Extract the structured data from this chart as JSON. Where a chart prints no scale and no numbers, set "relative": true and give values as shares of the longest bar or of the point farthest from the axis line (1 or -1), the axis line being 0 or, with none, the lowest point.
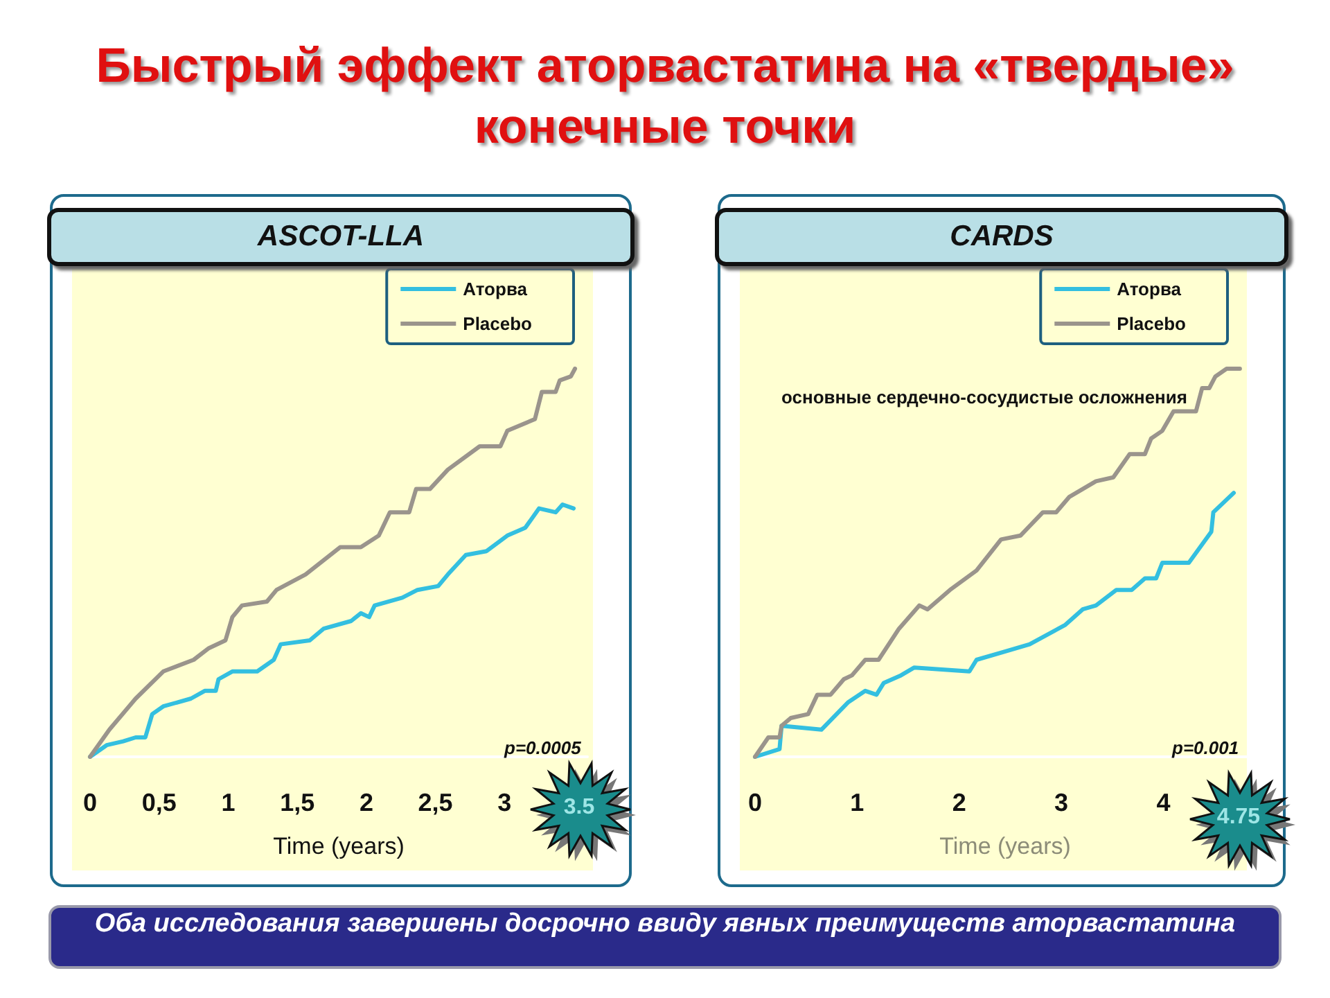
{
  "chart_data": [
    {
      "type": "line",
      "title": "ASCOT-LLA",
      "xlabel": "Time (years)",
      "relative": true,
      "xlim": [
        0,
        3.6
      ],
      "xticks": [
        0,
        {
          "value": 0.5,
          "label": "0,5"
        },
        1,
        {
          "value": 1.5,
          "label": "1,5"
        },
        2,
        {
          "value": 2.5,
          "label": "2,5"
        },
        3
      ],
      "tick_labels": "x",
      "grid": false,
      "legend": "top right",
      "marker": "none",
      "line_style": "solid",
      "annotations": [
        "Быстрый  эффект  аторвастатина на «твердые» конечные точки",
        "p=0.0005",
        "3.5",
        "Оба исследования завершены досрочно ввиду  явных преимуществ аторвастатина"
      ],
      "series": [
        {
          "name": "Аторва",
          "color": "#33bfe0",
          "x": [
            0,
            0.12,
            0.24,
            0.33,
            0.4,
            0.45,
            0.53,
            0.73,
            0.83,
            0.91,
            0.93,
            1.03,
            1.21,
            1.33,
            1.38,
            1.59,
            1.69,
            1.89,
            1.96,
            2.02,
            2.06,
            2.26,
            2.37,
            2.52,
            2.59,
            2.72,
            2.87,
            3.02,
            3.15,
            3.25,
            3.37,
            3.42,
            3.5
          ],
          "values": [
            0,
            0.03,
            0.04,
            0.05,
            0.05,
            0.11,
            0.13,
            0.15,
            0.17,
            0.17,
            0.2,
            0.22,
            0.22,
            0.25,
            0.29,
            0.3,
            0.33,
            0.35,
            0.37,
            0.36,
            0.39,
            0.41,
            0.43,
            0.44,
            0.47,
            0.52,
            0.53,
            0.57,
            0.59,
            0.64,
            0.63,
            0.65,
            0.64
          ]
        },
        {
          "name": "Placebo",
          "color": "#9a948c",
          "x": [
            0,
            0.14,
            0.33,
            0.53,
            0.75,
            0.86,
            0.98,
            1.03,
            1.1,
            1.28,
            1.35,
            1.56,
            1.81,
            1.96,
            2.09,
            2.17,
            2.31,
            2.36,
            2.46,
            2.59,
            2.82,
            2.97,
            3.02,
            3.22,
            3.27,
            3.37,
            3.4,
            3.48,
            3.51
          ],
          "values": [
            0,
            0.07,
            0.15,
            0.22,
            0.25,
            0.28,
            0.3,
            0.36,
            0.39,
            0.4,
            0.43,
            0.47,
            0.54,
            0.54,
            0.57,
            0.63,
            0.63,
            0.69,
            0.69,
            0.74,
            0.8,
            0.8,
            0.84,
            0.87,
            0.94,
            0.94,
            0.97,
            0.98,
            1
          ]
        }
      ]
    },
    {
      "type": "line",
      "title": "CARDS",
      "xlabel": "Time (years)",
      "relative": true,
      "xlim": [
        0,
        4.9
      ],
      "xticks": [
        0,
        1,
        2,
        3,
        4
      ],
      "tick_labels": "x",
      "grid": false,
      "legend": "top right",
      "marker": "none",
      "line_style": "solid",
      "annotations": [
        "основные сердечно-сосудистые осложнения",
        "p=0.001",
        "4.75"
      ],
      "series": [
        {
          "name": "Аторва",
          "color": "#33bfe0",
          "x": [
            0,
            0.24,
            0.26,
            0.65,
            0.91,
            1.08,
            1.19,
            1.26,
            1.43,
            1.56,
            2.1,
            2.17,
            2.43,
            2.69,
            3.04,
            3.21,
            3.34,
            3.54,
            3.69,
            3.82,
            3.93,
            3.99,
            4.25,
            4.47,
            4.49,
            4.69
          ],
          "values": [
            0,
            0.02,
            0.08,
            0.07,
            0.14,
            0.17,
            0.16,
            0.19,
            0.21,
            0.23,
            0.22,
            0.25,
            0.27,
            0.29,
            0.34,
            0.38,
            0.39,
            0.43,
            0.43,
            0.46,
            0.46,
            0.5,
            0.5,
            0.58,
            0.63,
            0.68
          ]
        },
        {
          "name": "Placebo",
          "color": "#9a948c",
          "x": [
            0,
            0.13,
            0.24,
            0.26,
            0.35,
            0.52,
            0.61,
            0.74,
            0.87,
            0.95,
            1.08,
            1.21,
            1.41,
            1.61,
            1.69,
            1.91,
            2.17,
            2.41,
            2.6,
            2.82,
            2.95,
            3.08,
            3.34,
            3.51,
            3.67,
            3.82,
            3.88,
            3.99,
            4.1,
            4.32,
            4.38,
            4.45,
            4.51,
            4.62,
            4.75
          ],
          "values": [
            0,
            0.05,
            0.05,
            0.08,
            0.1,
            0.11,
            0.16,
            0.16,
            0.2,
            0.21,
            0.25,
            0.25,
            0.33,
            0.39,
            0.38,
            0.43,
            0.48,
            0.56,
            0.57,
            0.63,
            0.63,
            0.67,
            0.71,
            0.72,
            0.78,
            0.78,
            0.82,
            0.84,
            0.89,
            0.89,
            0.95,
            0.95,
            0.98,
            1,
            1
          ]
        }
      ]
    }
  ]
}
